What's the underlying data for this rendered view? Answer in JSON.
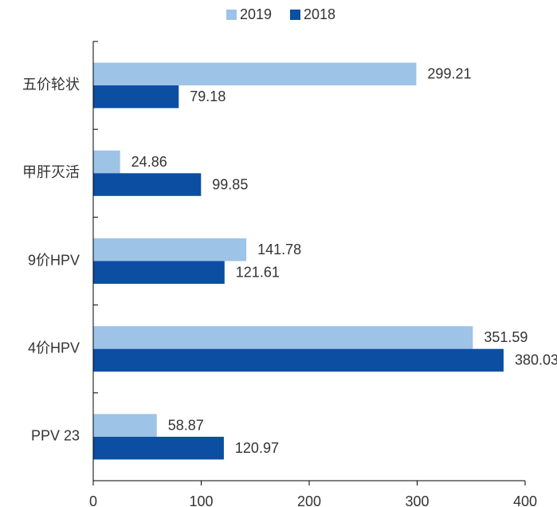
{
  "chart_data": {
    "type": "barh",
    "categories": [
      "五价轮状",
      "甲肝灭活",
      "9价HPV",
      "4价HPV",
      "PPV 23"
    ],
    "series": [
      {
        "name": "2019",
        "color": "#9dc3e6",
        "values": [
          299.21,
          24.86,
          141.78,
          351.59,
          58.87
        ]
      },
      {
        "name": "2018",
        "color": "#0b4ea2",
        "values": [
          79.18,
          99.85,
          121.61,
          380.03,
          120.97
        ]
      }
    ],
    "xlim": [
      0,
      400
    ],
    "xticks": [
      0,
      100,
      200,
      300,
      400
    ]
  }
}
